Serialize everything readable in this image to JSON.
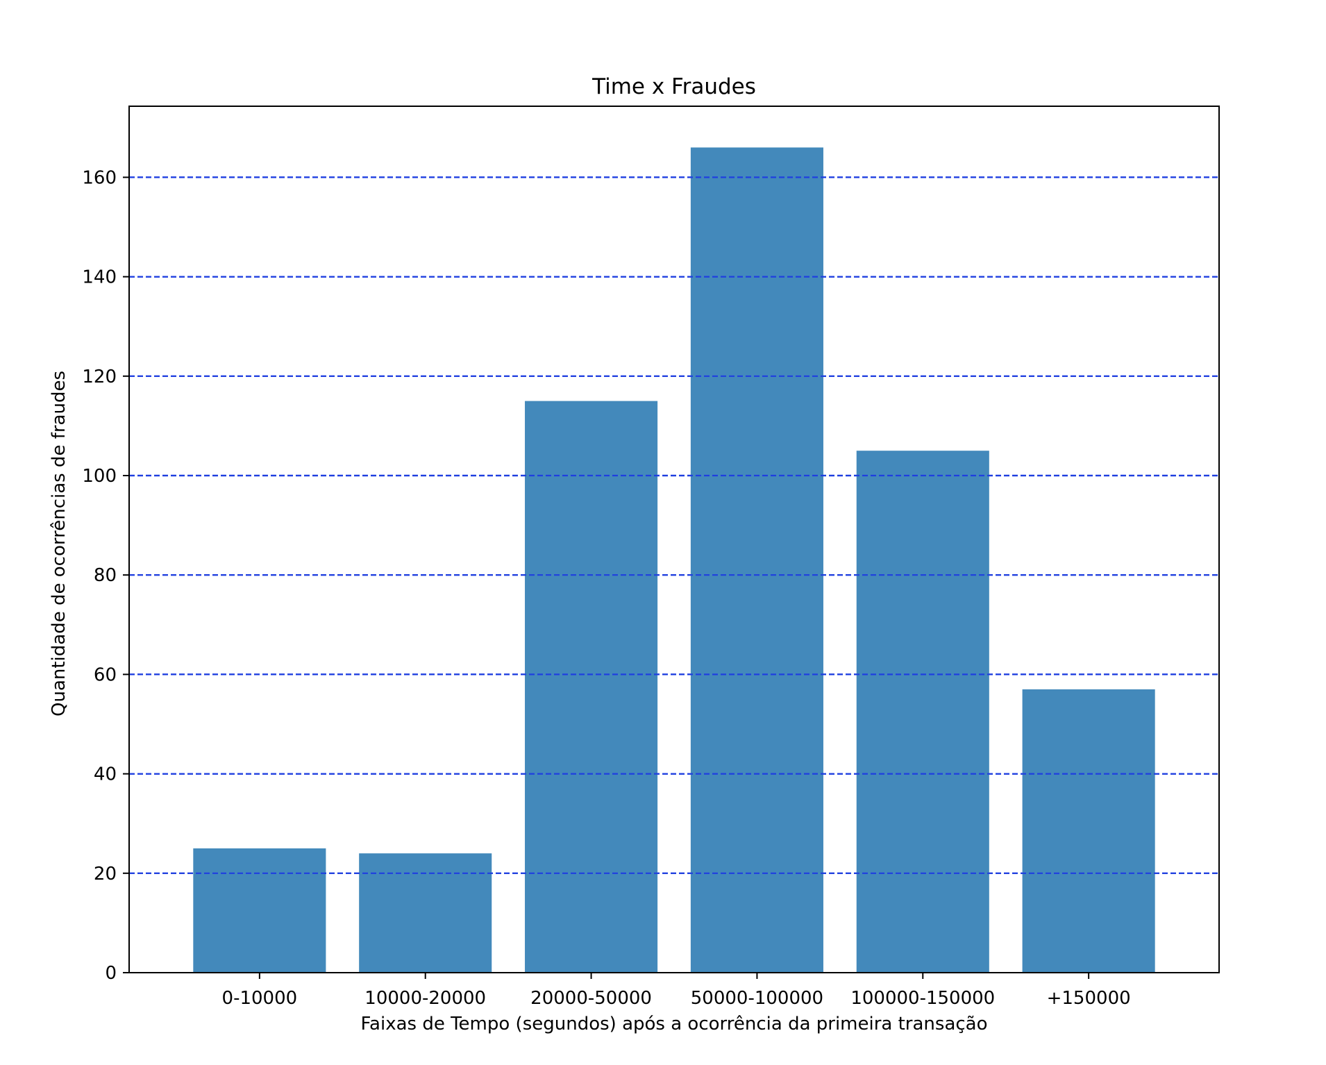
{
  "chart_data": {
    "type": "bar",
    "title": "Time x Fraudes",
    "xlabel": "Faixas de Tempo (segundos) após a ocorrência da primeira transação",
    "ylabel": "Quantidade de ocorrências de fraudes",
    "categories": [
      "0-10000",
      "10000-20000",
      "20000-50000",
      "50000-100000",
      "100000-150000",
      "+150000"
    ],
    "values": [
      25,
      24,
      115,
      166,
      105,
      57
    ],
    "ylim": [
      0,
      174.3
    ],
    "yticks": [
      0,
      20,
      40,
      60,
      80,
      100,
      120,
      140,
      160
    ],
    "ytick_labels": [
      "0",
      "20",
      "40",
      "60",
      "80",
      "100",
      "120",
      "140",
      "160"
    ],
    "grid": "y-axis dashed",
    "bar_color": "#4389bb",
    "grid_color": "#1f3fe0",
    "axis_color": "#000000"
  }
}
